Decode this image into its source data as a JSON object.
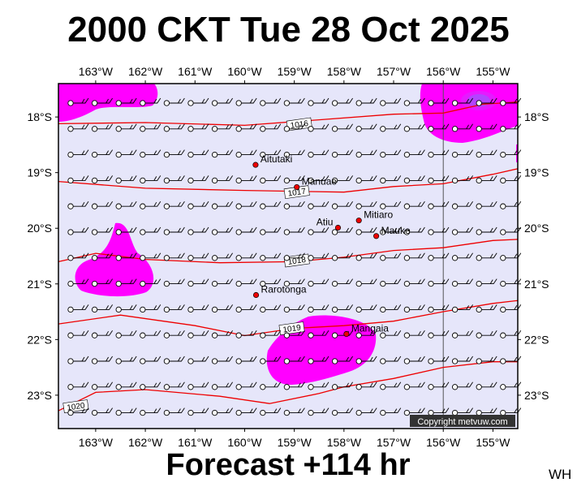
{
  "header": {
    "title": "2000 CKT Tue 28 Oct 2025"
  },
  "footer": {
    "forecast": "Forecast +114 hr",
    "corner": "WH"
  },
  "copyright": "Copyright metvuw.com",
  "map": {
    "lon_range": [
      -163.75,
      -154.5
    ],
    "lat_range": [
      -23.6,
      -17.4
    ],
    "lon_ticks": [
      {
        "value": -163,
        "label": "163°W"
      },
      {
        "value": -162,
        "label": "162°W"
      },
      {
        "value": -161,
        "label": "161°W"
      },
      {
        "value": -160,
        "label": "160°W"
      },
      {
        "value": -159,
        "label": "159°W"
      },
      {
        "value": -158,
        "label": "158°W"
      },
      {
        "value": -157,
        "label": "157°W"
      },
      {
        "value": -156,
        "label": "156°W"
      },
      {
        "value": -155,
        "label": "155°W"
      }
    ],
    "lat_ticks": [
      {
        "value": -18,
        "label": "18°S"
      },
      {
        "value": -19,
        "label": "19°S"
      },
      {
        "value": -20,
        "label": "20°S"
      },
      {
        "value": -21,
        "label": "21°S"
      },
      {
        "value": -22,
        "label": "22°S"
      },
      {
        "value": -23,
        "label": "23°S"
      }
    ],
    "meridian_line": -156,
    "places": [
      {
        "name": "Aitutaki",
        "lon": -159.78,
        "lat": -18.86
      },
      {
        "name": "Manuae",
        "lon": -158.95,
        "lat": -19.26
      },
      {
        "name": "Atiu",
        "lon": -158.12,
        "lat": -19.99
      },
      {
        "name": "Mitiaro",
        "lon": -157.7,
        "lat": -19.86
      },
      {
        "name": "Mauke",
        "lon": -157.35,
        "lat": -20.14
      },
      {
        "name": "Rarotonga",
        "lon": -159.77,
        "lat": -21.2
      },
      {
        "name": "Mangaia",
        "lon": -157.95,
        "lat": -21.9
      }
    ],
    "isobars": [
      {
        "label": "1016",
        "label_pos": [
          -158.9,
          -18.13
        ],
        "points": [
          [
            -163.75,
            -18.12
          ],
          [
            -162,
            -18.1
          ],
          [
            -160,
            -18.15
          ],
          [
            -158.5,
            -18.05
          ],
          [
            -157,
            -17.95
          ],
          [
            -156,
            -17.93
          ],
          [
            -155.2,
            -17.77
          ],
          [
            -154.5,
            -17.73
          ]
        ]
      },
      {
        "label": "1017",
        "label_pos": [
          -158.95,
          -19.35
        ],
        "points": [
          [
            -163.75,
            -19.16
          ],
          [
            -162,
            -19.28
          ],
          [
            -160,
            -19.32
          ],
          [
            -158,
            -19.35
          ],
          [
            -157,
            -19.25
          ],
          [
            -156,
            -19.2
          ],
          [
            -155,
            -19.03
          ],
          [
            -154.5,
            -18.93
          ]
        ]
      },
      {
        "label": "1018",
        "label_pos": [
          -158.95,
          -20.58
        ],
        "points": [
          [
            -163.75,
            -20.6
          ],
          [
            -163,
            -20.45
          ],
          [
            -162,
            -20.56
          ],
          [
            -160.5,
            -20.62
          ],
          [
            -159,
            -20.6
          ],
          [
            -158,
            -20.52
          ],
          [
            -157,
            -20.4
          ],
          [
            -156,
            -20.35
          ],
          [
            -155,
            -20.22
          ],
          [
            -154.5,
            -20.2
          ]
        ]
      },
      {
        "label": "1019",
        "label_pos": [
          -159.05,
          -21.8
        ],
        "points": [
          [
            -163.75,
            -21.72
          ],
          [
            -162.5,
            -21.56
          ],
          [
            -161,
            -21.75
          ],
          [
            -160,
            -21.93
          ],
          [
            -159,
            -21.8
          ],
          [
            -158,
            -21.75
          ],
          [
            -157,
            -21.67
          ],
          [
            -156,
            -21.5
          ],
          [
            -155,
            -21.35
          ],
          [
            -154.5,
            -21.3
          ]
        ]
      },
      {
        "label": "1020",
        "label_pos": [
          -163.4,
          -23.2
        ],
        "points": [
          [
            -163.75,
            -23.28
          ],
          [
            -163,
            -22.95
          ],
          [
            -162,
            -22.9
          ],
          [
            -160.5,
            -23.02
          ],
          [
            -159.5,
            -23.15
          ],
          [
            -158.5,
            -22.97
          ],
          [
            -158,
            -22.85
          ],
          [
            -157,
            -22.7
          ],
          [
            -156,
            -22.5
          ],
          [
            -155,
            -22.4
          ],
          [
            -154.5,
            -22.4
          ]
        ]
      }
    ],
    "precip_colors": {
      "light": "#ff00ff",
      "mid": "#cc33ff",
      "heavy": "#9955ff"
    },
    "map_bg": "#e6e6fa",
    "isobar_color": "#ee0000"
  }
}
